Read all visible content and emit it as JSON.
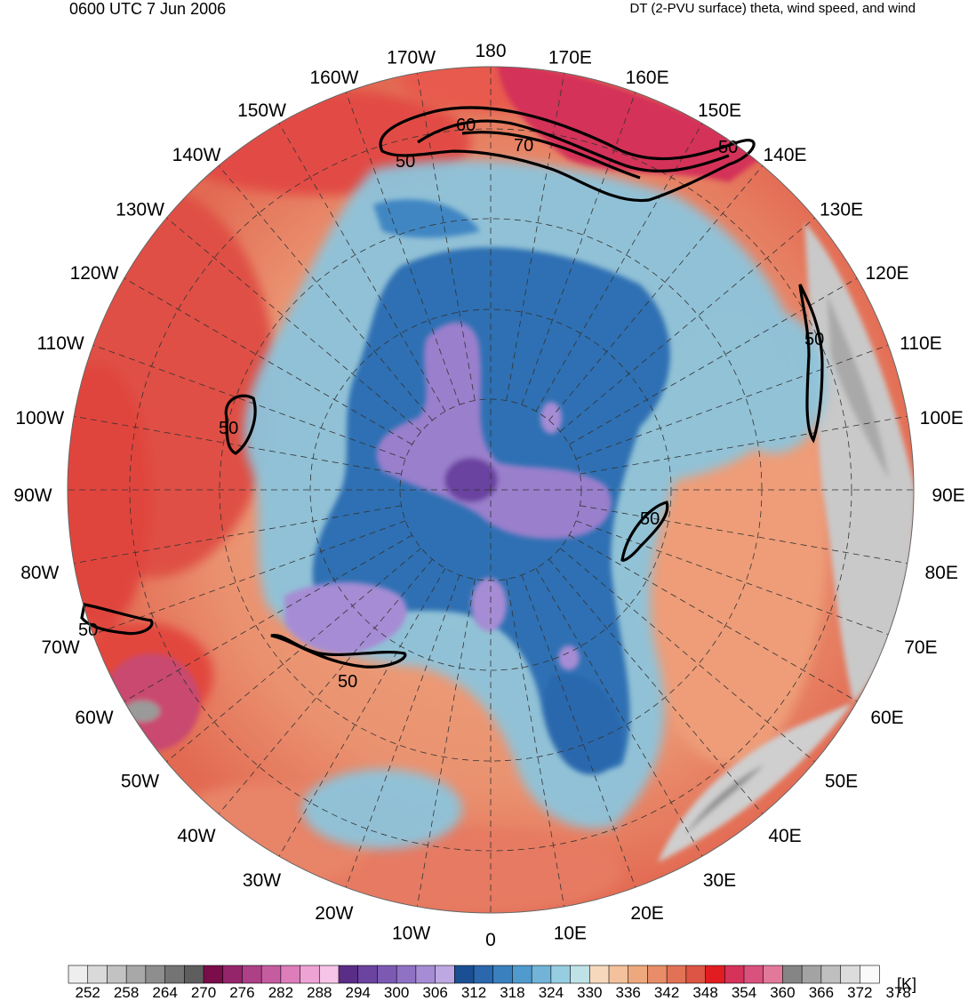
{
  "header": {
    "valid_time": "0600 UTC 7 Jun 2006",
    "product": "DT (2-PVU surface) theta, wind speed, and wind"
  },
  "map": {
    "projection": "north-polar-stereographic",
    "longitude_labels": [
      "180",
      "170E",
      "160E",
      "150E",
      "140E",
      "130E",
      "120E",
      "110E",
      "100E",
      "90E",
      "80E",
      "70E",
      "60E",
      "50E",
      "40E",
      "30E",
      "20E",
      "10E",
      "0",
      "10W",
      "20W",
      "30W",
      "40W",
      "50W",
      "60W",
      "70W",
      "80W",
      "90W",
      "100W",
      "110W",
      "120W",
      "130W",
      "140W",
      "150W",
      "160W",
      "170W"
    ],
    "jet_contour_labels": [
      "50",
      "60",
      "70",
      "50",
      "50",
      "50",
      "50",
      "50",
      "50"
    ]
  },
  "colorbar": {
    "unit": "[K]",
    "tick_labels": [
      "252",
      "258",
      "264",
      "270",
      "276",
      "282",
      "288",
      "294",
      "300",
      "306",
      "312",
      "318",
      "324",
      "330",
      "336",
      "342",
      "348",
      "354",
      "360",
      "366",
      "372",
      "378"
    ],
    "colors": [
      "#eeeeee",
      "#d9d9d9",
      "#c2c2c2",
      "#a8a8a8",
      "#8e8e8e",
      "#747474",
      "#5e5e5e",
      "#7a0d4a",
      "#94256a",
      "#ad4086",
      "#c65ca0",
      "#dd7dba",
      "#eda3d3",
      "#f6c4e6",
      "#5a2d86",
      "#6b43a0",
      "#7c5ab4",
      "#8f72c4",
      "#a68cd4",
      "#bda8e2",
      "#1b4f94",
      "#2a67ad",
      "#3a80bf",
      "#509acd",
      "#71b4d8",
      "#97cde0",
      "#bfe2e6",
      "#f6d9bd",
      "#f3c19c",
      "#eea87e",
      "#e88d68",
      "#e27256",
      "#dc5545",
      "#e21d22",
      "#d6325a",
      "#d9527d",
      "#e3799a",
      "#858585",
      "#a3a3a3",
      "#bfbfbf",
      "#dcdcdc",
      "#fafafa"
    ]
  }
}
